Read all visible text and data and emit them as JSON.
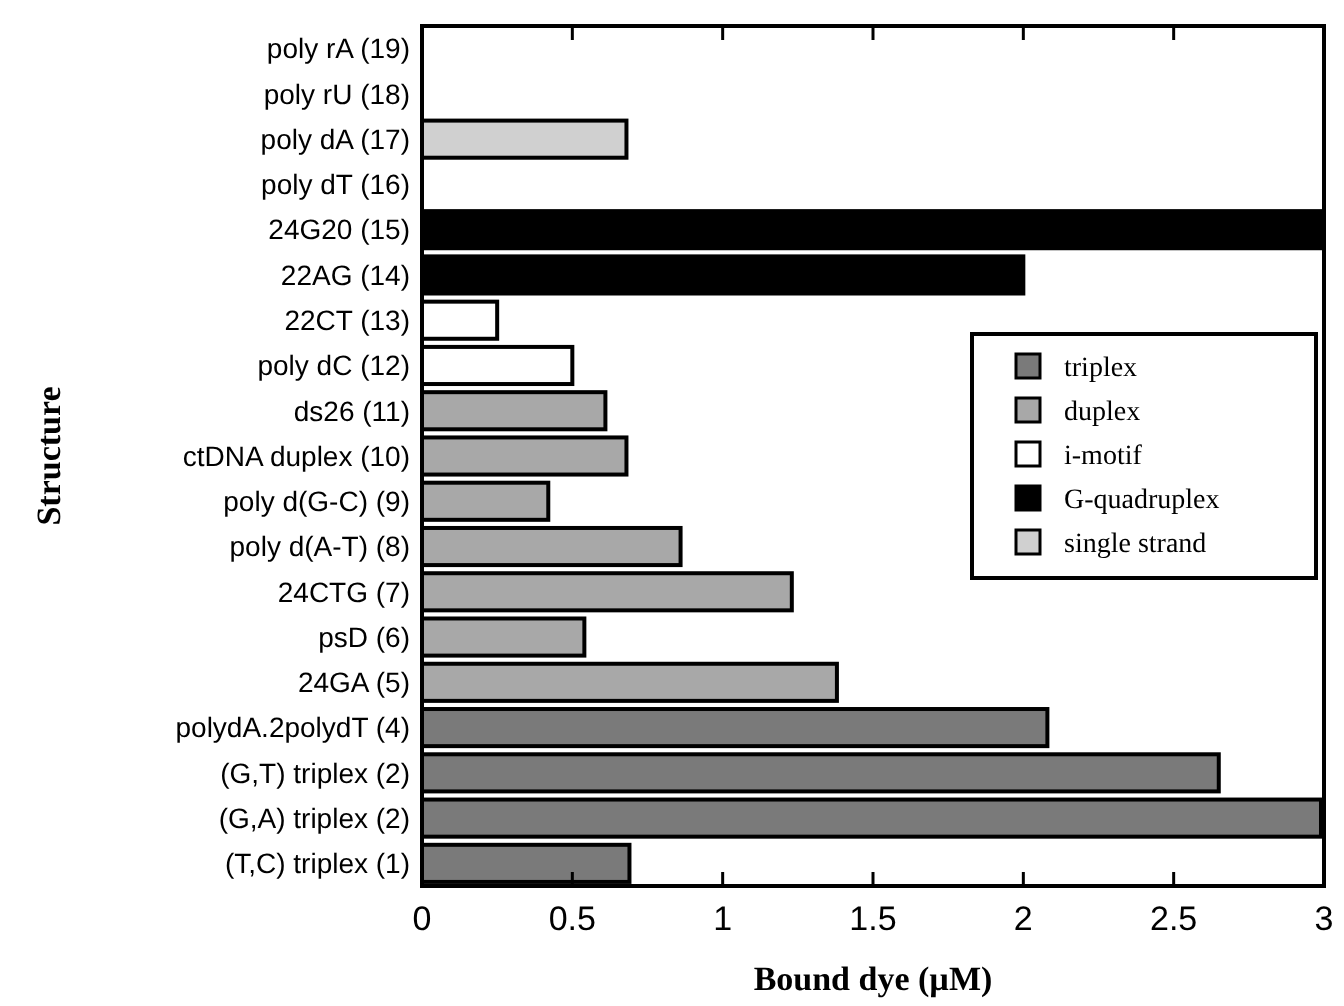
{
  "chart_data": {
    "type": "bar",
    "orientation": "horizontal",
    "xlabel": "Bound dye (µM)",
    "ylabel": "Structure",
    "categories": [
      "poly rA (19)",
      "poly rU (18)",
      "poly dA (17)",
      "poly dT (16)",
      "24G20 (15)",
      "22AG (14)",
      "22CT (13)",
      "poly dC (12)",
      "ds26 (11)",
      "ctDNA duplex (10)",
      "poly d(G-C)  (9)",
      "poly d(A-T) (8)",
      "24CTG (7)",
      "psD (6)",
      "24GA (5)",
      "polydA.2polydT (4)",
      "(G,T) triplex (2)",
      "(G,A) triplex (2)",
      "(T,C) triplex (1)"
    ],
    "series": [
      {
        "name": "triplex",
        "color": "#7a7a7a",
        "values": [
          null,
          null,
          null,
          null,
          null,
          null,
          null,
          null,
          null,
          null,
          null,
          null,
          null,
          null,
          null,
          2.08,
          2.65,
          2.99,
          0.69
        ]
      },
      {
        "name": "duplex",
        "color": "#a8a8a8",
        "values": [
          null,
          null,
          null,
          null,
          null,
          null,
          null,
          null,
          0.61,
          0.68,
          0.42,
          0.86,
          1.23,
          0.54,
          1.38,
          null,
          null,
          null,
          null
        ]
      },
      {
        "name": "i-motif",
        "color": "#ffffff",
        "values": [
          null,
          null,
          null,
          null,
          null,
          null,
          0.25,
          0.5,
          null,
          null,
          null,
          null,
          null,
          null,
          null,
          null,
          null,
          null,
          null
        ]
      },
      {
        "name": "G-quadruplex",
        "color": "#000000",
        "values": [
          null,
          null,
          null,
          null,
          3.0,
          2.0,
          null,
          null,
          null,
          null,
          null,
          null,
          null,
          null,
          null,
          null,
          null,
          null,
          null
        ]
      },
      {
        "name": "single strand",
        "color": "#d0d0d0",
        "values": [
          0,
          0,
          0.68,
          0,
          null,
          null,
          null,
          null,
          null,
          null,
          null,
          null,
          null,
          null,
          null,
          null,
          null,
          null,
          null
        ]
      }
    ],
    "xlim": [
      0,
      3
    ],
    "xticks": [
      0,
      0.5,
      1,
      1.5,
      2,
      2.5,
      3
    ],
    "legend": "right"
  }
}
